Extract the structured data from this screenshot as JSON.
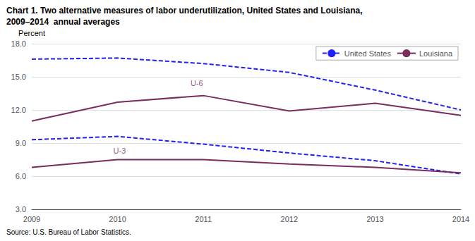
{
  "chart_data": {
    "type": "line",
    "title": "Chart 1. Two alternative measures of labor underutilization, United States and Louisiana,\n2009–2014  annual averages",
    "ylabel": "Percent",
    "source": "Source: U.S. Bureau of Labor Statistics.",
    "x": [
      2009,
      2010,
      2011,
      2012,
      2013,
      2014
    ],
    "xlim": [
      2009,
      2014
    ],
    "xticks": [
      2009,
      2010,
      2011,
      2012,
      2013,
      2014
    ],
    "ylim": [
      3.0,
      18.0
    ],
    "yticks": [
      {
        "value": 3.0,
        "label": "3.0"
      },
      {
        "value": 6.0,
        "label": "6.0"
      },
      {
        "value": 9.0,
        "label": "9.0"
      },
      {
        "value": 12.0,
        "label": "12.0"
      },
      {
        "value": 15.0,
        "label": "15.0"
      },
      {
        "value": 18.0,
        "label": "18.0"
      }
    ],
    "series": [
      {
        "name": "United States",
        "color": "#1f1fff",
        "line_style": "dashed",
        "values": [
          16.6,
          16.7,
          16.2,
          15.4,
          13.8,
          12.0
        ]
      },
      {
        "name": "Louisiana",
        "color": "#7B2D5E",
        "line_style": "solid",
        "values": [
          11.0,
          12.7,
          13.3,
          11.9,
          12.6,
          11.5
        ]
      },
      {
        "name": "United States",
        "color": "#1f1fff",
        "line_style": "dashed",
        "values": [
          9.3,
          9.6,
          8.9,
          8.1,
          7.4,
          6.2
        ]
      },
      {
        "name": "Louisiana",
        "color": "#7B2D5E",
        "line_style": "solid",
        "values": [
          6.8,
          7.5,
          7.5,
          7.1,
          6.8,
          6.3
        ]
      }
    ],
    "annotations": [
      {
        "text": "U-6",
        "x": 2010.85,
        "y": 14.4,
        "color": "#7B2D5E"
      },
      {
        "text": "U-3",
        "x": 2009.95,
        "y": 8.3,
        "color": "#7B2D5E"
      }
    ],
    "grid": true,
    "legend": "upper right"
  }
}
